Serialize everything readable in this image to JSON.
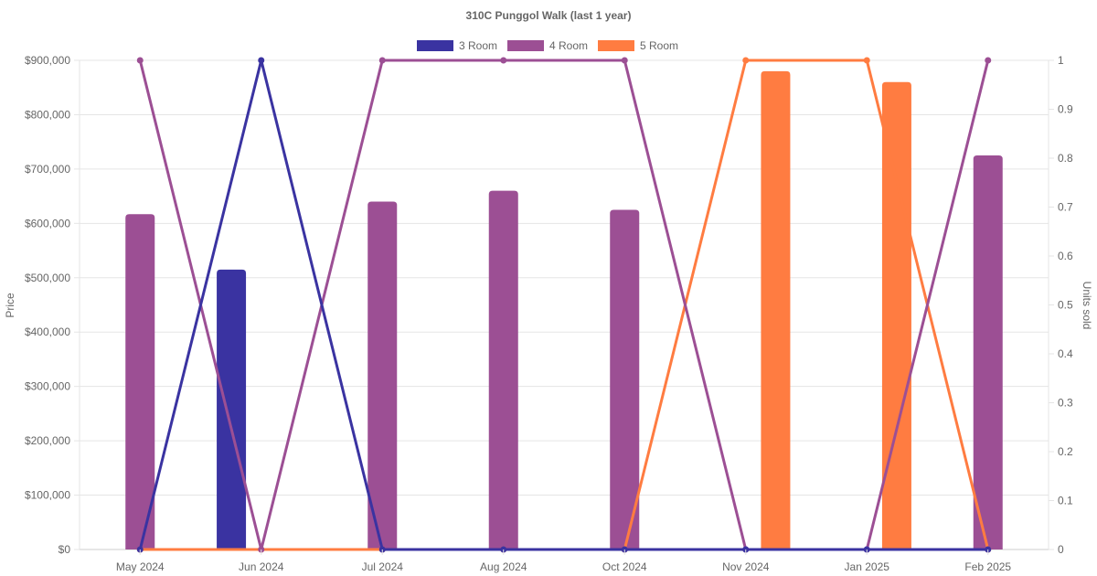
{
  "chart_data": {
    "type": "bar",
    "title": "310C Punggol Walk (last 1 year)",
    "categories": [
      "May 2024",
      "Jun 2024",
      "Jul 2024",
      "Aug 2024",
      "Oct 2024",
      "Nov 2024",
      "Jan 2025",
      "Feb 2025"
    ],
    "ylabel": "Price",
    "y2label": "Units sold",
    "ylim": [
      0,
      900000
    ],
    "y2lim": [
      0,
      1
    ],
    "yticks": [
      "$0",
      "$100,000",
      "$200,000",
      "$300,000",
      "$400,000",
      "$500,000",
      "$600,000",
      "$700,000",
      "$800,000",
      "$900,000"
    ],
    "y2ticks": [
      "0",
      "0.1",
      "0.2",
      "0.3",
      "0.4",
      "0.5",
      "0.6",
      "0.7",
      "0.8",
      "0.9",
      "1"
    ],
    "legend_position": "top",
    "grid": true,
    "series": [
      {
        "name": "3 Room",
        "color": "#3a33a1",
        "price": [
          null,
          515000,
          null,
          null,
          null,
          null,
          null,
          null
        ],
        "units_sold": [
          0,
          1,
          0,
          0,
          0,
          0,
          0,
          0
        ]
      },
      {
        "name": "4 Room",
        "color": "#9c4f94",
        "price": [
          617000,
          null,
          640000,
          660000,
          625000,
          null,
          null,
          725000
        ],
        "units_sold": [
          1,
          0,
          1,
          1,
          1,
          0,
          0,
          1
        ]
      },
      {
        "name": "5 Room",
        "color": "#ff7c41",
        "price": [
          null,
          null,
          null,
          null,
          null,
          880000,
          860000,
          null
        ],
        "units_sold": [
          0,
          0,
          0,
          0,
          0,
          1,
          1,
          0
        ]
      }
    ]
  }
}
